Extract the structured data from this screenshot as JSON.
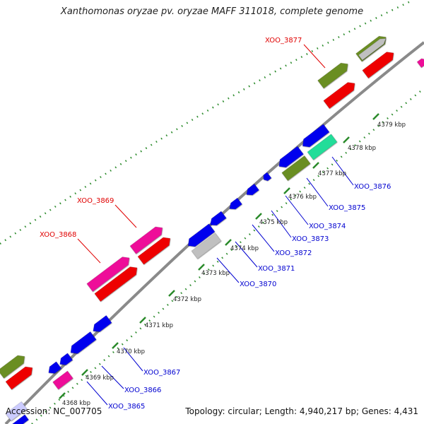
{
  "title": "Xanthomonas oryzae pv. oryzae MAFF 311018, complete genome",
  "footer": {
    "accession": "Accession: NC_007705",
    "topology": "Topology: circular; Length: 4,940,217 bp; Genes: 4,431"
  },
  "colors": {
    "backbone": "#8a8a8a",
    "ticks": "#2a8a2a",
    "forward_label": "#e00000",
    "reverse_label": "#0000d0",
    "gene_blue": "#0000ee",
    "gene_red": "#ee0000",
    "gene_green": "#6b8e23",
    "gene_magenta": "#ee1199",
    "gene_gray": "#c0c0c0",
    "gene_teal": "#22dd99"
  },
  "ticks": [
    {
      "label": "4368 kbp"
    },
    {
      "label": "4369 kbp"
    },
    {
      "label": "4370 kbp"
    },
    {
      "label": "4371 kbp"
    },
    {
      "label": "4372 kbp"
    },
    {
      "label": "4373 kbp"
    },
    {
      "label": "4374 kbp"
    },
    {
      "label": "4375 kbp"
    },
    {
      "label": "4376 kbp"
    },
    {
      "label": "4377 kbp"
    },
    {
      "label": "4378 kbp"
    },
    {
      "label": "4379 kbp"
    }
  ],
  "gene_labels": [
    {
      "text": "XOO_3877",
      "strand": "forward"
    },
    {
      "text": "XOO_3869",
      "strand": "forward"
    },
    {
      "text": "XOO_3868",
      "strand": "forward"
    },
    {
      "text": "XOO_3876",
      "strand": "reverse"
    },
    {
      "text": "XOO_3875",
      "strand": "reverse"
    },
    {
      "text": "XOO_3874",
      "strand": "reverse"
    },
    {
      "text": "XOO_3873",
      "strand": "reverse"
    },
    {
      "text": "XOO_3872",
      "strand": "reverse"
    },
    {
      "text": "XOO_3871",
      "strand": "reverse"
    },
    {
      "text": "XOO_3870",
      "strand": "reverse"
    },
    {
      "text": "XOO_3867",
      "strand": "reverse"
    },
    {
      "text": "XOO_3866",
      "strand": "reverse"
    },
    {
      "text": "XOO_3865",
      "strand": "reverse"
    }
  ]
}
